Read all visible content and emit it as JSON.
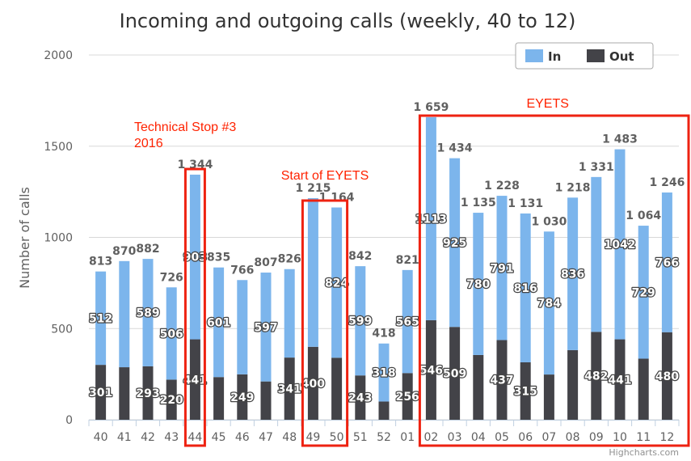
{
  "chart_data": {
    "type": "bar",
    "stacked": true,
    "title": "Incoming and outgoing calls (weekly, 40 to 12)",
    "ylabel": "Number of calls",
    "xlabel": "",
    "ylim": [
      0,
      2000
    ],
    "yticks": [
      "0",
      "500",
      "1000",
      "1500",
      "2000"
    ],
    "grid": true,
    "legend_position": "top-right",
    "categories": [
      "40",
      "41",
      "42",
      "43",
      "44",
      "45",
      "46",
      "47",
      "48",
      "49",
      "50",
      "51",
      "52",
      "01",
      "02",
      "03",
      "04",
      "05",
      "06",
      "07",
      "08",
      "09",
      "10",
      "11",
      "12"
    ],
    "series": [
      {
        "name": "Out",
        "color": "#434348",
        "values": [
          301,
          288,
          293,
          220,
          441,
          234,
          249,
          210,
          341,
          400,
          340,
          243,
          100,
          256,
          546,
          509,
          355,
          437,
          315,
          248,
          382,
          482,
          441,
          335,
          480
        ],
        "labels": [
          "301",
          "",
          "293",
          "220",
          "441",
          "",
          "249",
          "",
          "341",
          "400",
          "",
          "243",
          "",
          "256",
          "546",
          "509",
          "",
          "437",
          "315",
          "",
          "",
          "482",
          "441",
          "",
          "480"
        ]
      },
      {
        "name": "In",
        "color": "#7cb5ec",
        "values": [
          512,
          582,
          589,
          506,
          903,
          601,
          517,
          597,
          485,
          815,
          824,
          599,
          318,
          565,
          1113,
          925,
          780,
          791,
          816,
          784,
          836,
          849,
          1042,
          729,
          766
        ],
        "labels": [
          "512",
          "",
          "589",
          "506",
          "903",
          "601",
          "",
          "597",
          "",
          "",
          "824",
          "599",
          "318",
          "565",
          "1113",
          "925",
          "780",
          "791",
          "816",
          "784",
          "836",
          "",
          "1042",
          "729",
          "766"
        ]
      }
    ],
    "totals": [
      "813",
      "870",
      "882",
      "726",
      "1 344",
      "835",
      "766",
      "807",
      "826",
      "1 215",
      "1 164",
      "842",
      "418",
      "821",
      "1 659",
      "1 434",
      "1 135",
      "1 228",
      "1 131",
      "1 030",
      "1 218",
      "1 331",
      "1 483",
      "1 064",
      "1 246"
    ],
    "annotations": [
      {
        "text": [
          "Technical Stop #3",
          "2016"
        ],
        "from": "44",
        "to": "44"
      },
      {
        "text": [
          "Start of EYETS"
        ],
        "from": "49",
        "to": "50"
      },
      {
        "text": [
          "EYETS"
        ],
        "from": "02",
        "to": "12"
      }
    ],
    "credits": "Highcharts.com"
  }
}
